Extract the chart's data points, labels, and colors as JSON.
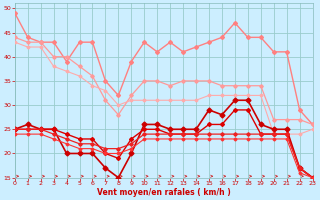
{
  "x": [
    0,
    1,
    2,
    3,
    4,
    5,
    6,
    7,
    8,
    9,
    10,
    11,
    12,
    13,
    14,
    15,
    16,
    17,
    18,
    19,
    20,
    21,
    22,
    23
  ],
  "series": [
    {
      "label": "rafales_max",
      "color": "#ff8080",
      "lw": 1.0,
      "marker": "D",
      "markersize": 2.0,
      "values": [
        49,
        44,
        43,
        43,
        39,
        43,
        43,
        35,
        32,
        39,
        43,
        41,
        43,
        41,
        42,
        43,
        44,
        47,
        44,
        44,
        41,
        41,
        29,
        26
      ]
    },
    {
      "label": "rafales_moy",
      "color": "#ff9999",
      "lw": 0.9,
      "marker": "D",
      "markersize": 1.8,
      "values": [
        44,
        43,
        43,
        40,
        40,
        38,
        36,
        31,
        28,
        32,
        35,
        35,
        34,
        35,
        35,
        35,
        34,
        34,
        34,
        34,
        27,
        27,
        27,
        26
      ]
    },
    {
      "label": "vent_moy_upper",
      "color": "#ffaaaa",
      "lw": 0.8,
      "marker": "D",
      "markersize": 1.5,
      "values": [
        43,
        42,
        42,
        38,
        37,
        36,
        34,
        33,
        30,
        31,
        31,
        31,
        31,
        31,
        31,
        32,
        32,
        32,
        32,
        32,
        24,
        24,
        24,
        25
      ]
    },
    {
      "label": "vent_fort",
      "color": "#cc0000",
      "lw": 1.2,
      "marker": "D",
      "markersize": 2.5,
      "values": [
        25,
        26,
        25,
        25,
        20,
        20,
        20,
        17,
        15,
        20,
        26,
        26,
        25,
        25,
        25,
        29,
        28,
        31,
        31,
        26,
        25,
        25,
        17,
        15
      ]
    },
    {
      "label": "vent_moy1",
      "color": "#dd0000",
      "lw": 1.0,
      "marker": "D",
      "markersize": 2.0,
      "values": [
        25,
        25,
        25,
        25,
        24,
        23,
        23,
        20,
        19,
        23,
        25,
        25,
        24,
        24,
        24,
        26,
        26,
        29,
        29,
        24,
        24,
        24,
        17,
        15
      ]
    },
    {
      "label": "vent_moy2",
      "color": "#ee2222",
      "lw": 0.9,
      "marker": "D",
      "markersize": 1.8,
      "values": [
        25,
        25,
        25,
        24,
        23,
        22,
        22,
        21,
        21,
        22,
        24,
        24,
        24,
        24,
        24,
        24,
        24,
        24,
        24,
        24,
        24,
        24,
        17,
        15
      ]
    },
    {
      "label": "vent_min",
      "color": "#ff3333",
      "lw": 0.8,
      "marker": "D",
      "markersize": 1.5,
      "values": [
        24,
        24,
        24,
        23,
        22,
        21,
        21,
        20,
        20,
        21,
        23,
        23,
        23,
        23,
        23,
        23,
        23,
        23,
        23,
        23,
        23,
        23,
        16,
        15
      ]
    }
  ],
  "xlim": [
    0,
    23
  ],
  "ylim": [
    15,
    51
  ],
  "yticks": [
    15,
    20,
    25,
    30,
    35,
    40,
    45,
    50
  ],
  "xticks": [
    0,
    1,
    2,
    3,
    4,
    5,
    6,
    7,
    8,
    9,
    10,
    11,
    12,
    13,
    14,
    15,
    16,
    17,
    18,
    19,
    20,
    21,
    22,
    23
  ],
  "xlabel": "Vent moyen/en rafales ( km/h )",
  "bgcolor": "#cceeff",
  "grid_color": "#99cccc",
  "tick_color": "#cc0000",
  "label_color": "#cc0000",
  "arrow_color": "#cc2222"
}
